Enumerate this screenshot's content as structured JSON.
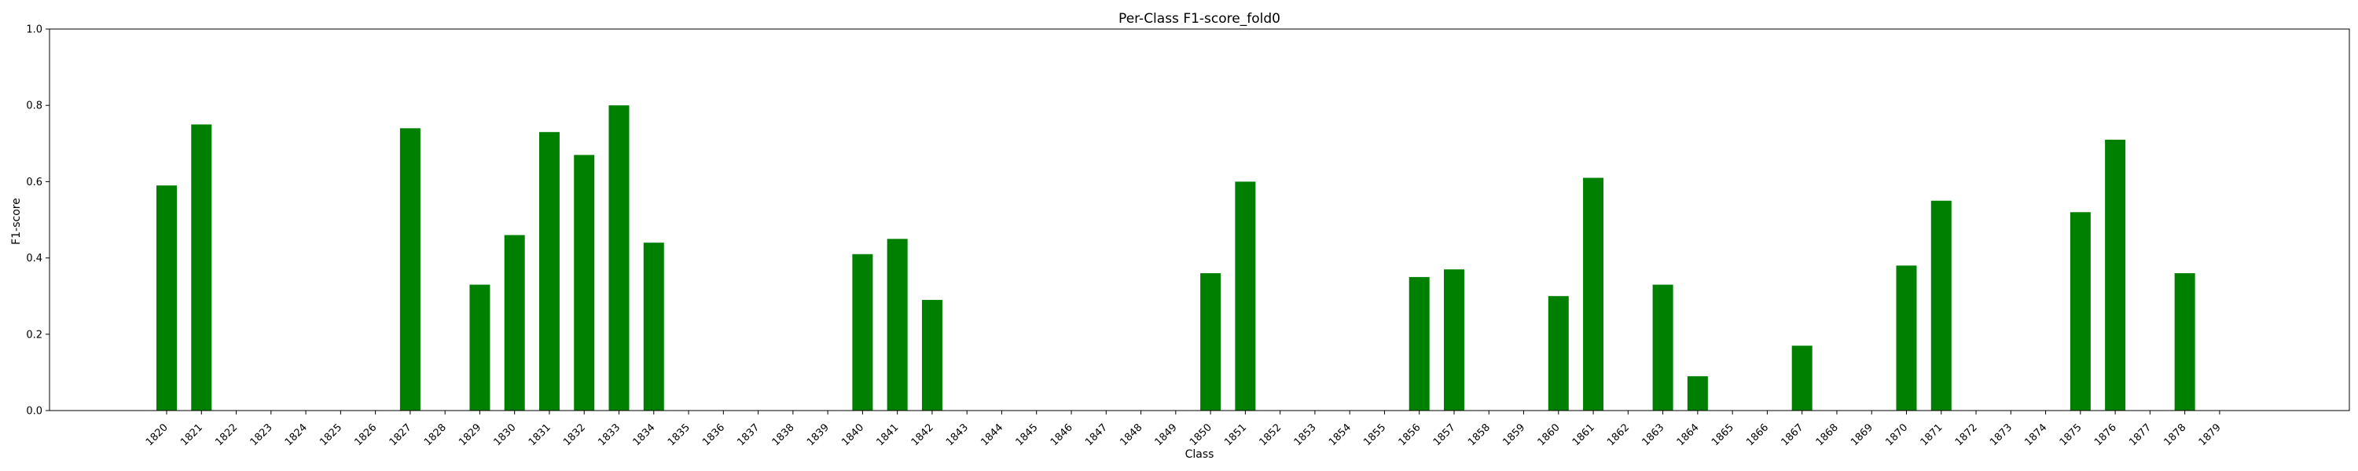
{
  "chart_data": {
    "type": "bar",
    "title": "Per-Class F1-score_fold0",
    "xlabel": "Class",
    "ylabel": "F1-score",
    "ylim": [
      0,
      1.0
    ],
    "yticks": [
      "0.0",
      "0.2",
      "0.4",
      "0.6",
      "0.8",
      "1.0"
    ],
    "bar_color": "#008000",
    "categories": [
      "1820",
      "1821",
      "1822",
      "1823",
      "1824",
      "1825",
      "1826",
      "1827",
      "1828",
      "1829",
      "1830",
      "1831",
      "1832",
      "1833",
      "1834",
      "1835",
      "1836",
      "1837",
      "1838",
      "1839",
      "1840",
      "1841",
      "1842",
      "1843",
      "1844",
      "1845",
      "1846",
      "1847",
      "1848",
      "1849",
      "1850",
      "1851",
      "1852",
      "1853",
      "1854",
      "1855",
      "1856",
      "1857",
      "1858",
      "1859",
      "1860",
      "1861",
      "1862",
      "1863",
      "1864",
      "1865",
      "1866",
      "1867",
      "1868",
      "1869",
      "1870",
      "1871",
      "1872",
      "1873",
      "1874",
      "1875",
      "1876",
      "1877",
      "1878",
      "1879"
    ],
    "values": [
      0.59,
      0.75,
      0,
      0,
      0,
      0,
      0,
      0.74,
      0,
      0.33,
      0.46,
      0.73,
      0.67,
      0.8,
      0.44,
      0,
      0,
      0,
      0,
      0,
      0.41,
      0.45,
      0.29,
      0,
      0,
      0,
      0,
      0,
      0,
      0,
      0.36,
      0.6,
      0,
      0,
      0,
      0,
      0.35,
      0.37,
      0,
      0,
      0.3,
      0.61,
      0,
      0.33,
      0.09,
      0,
      0,
      0.17,
      0,
      0,
      0.38,
      0.55,
      0,
      0,
      0,
      0.52,
      0.71,
      0,
      0.36,
      0
    ]
  }
}
